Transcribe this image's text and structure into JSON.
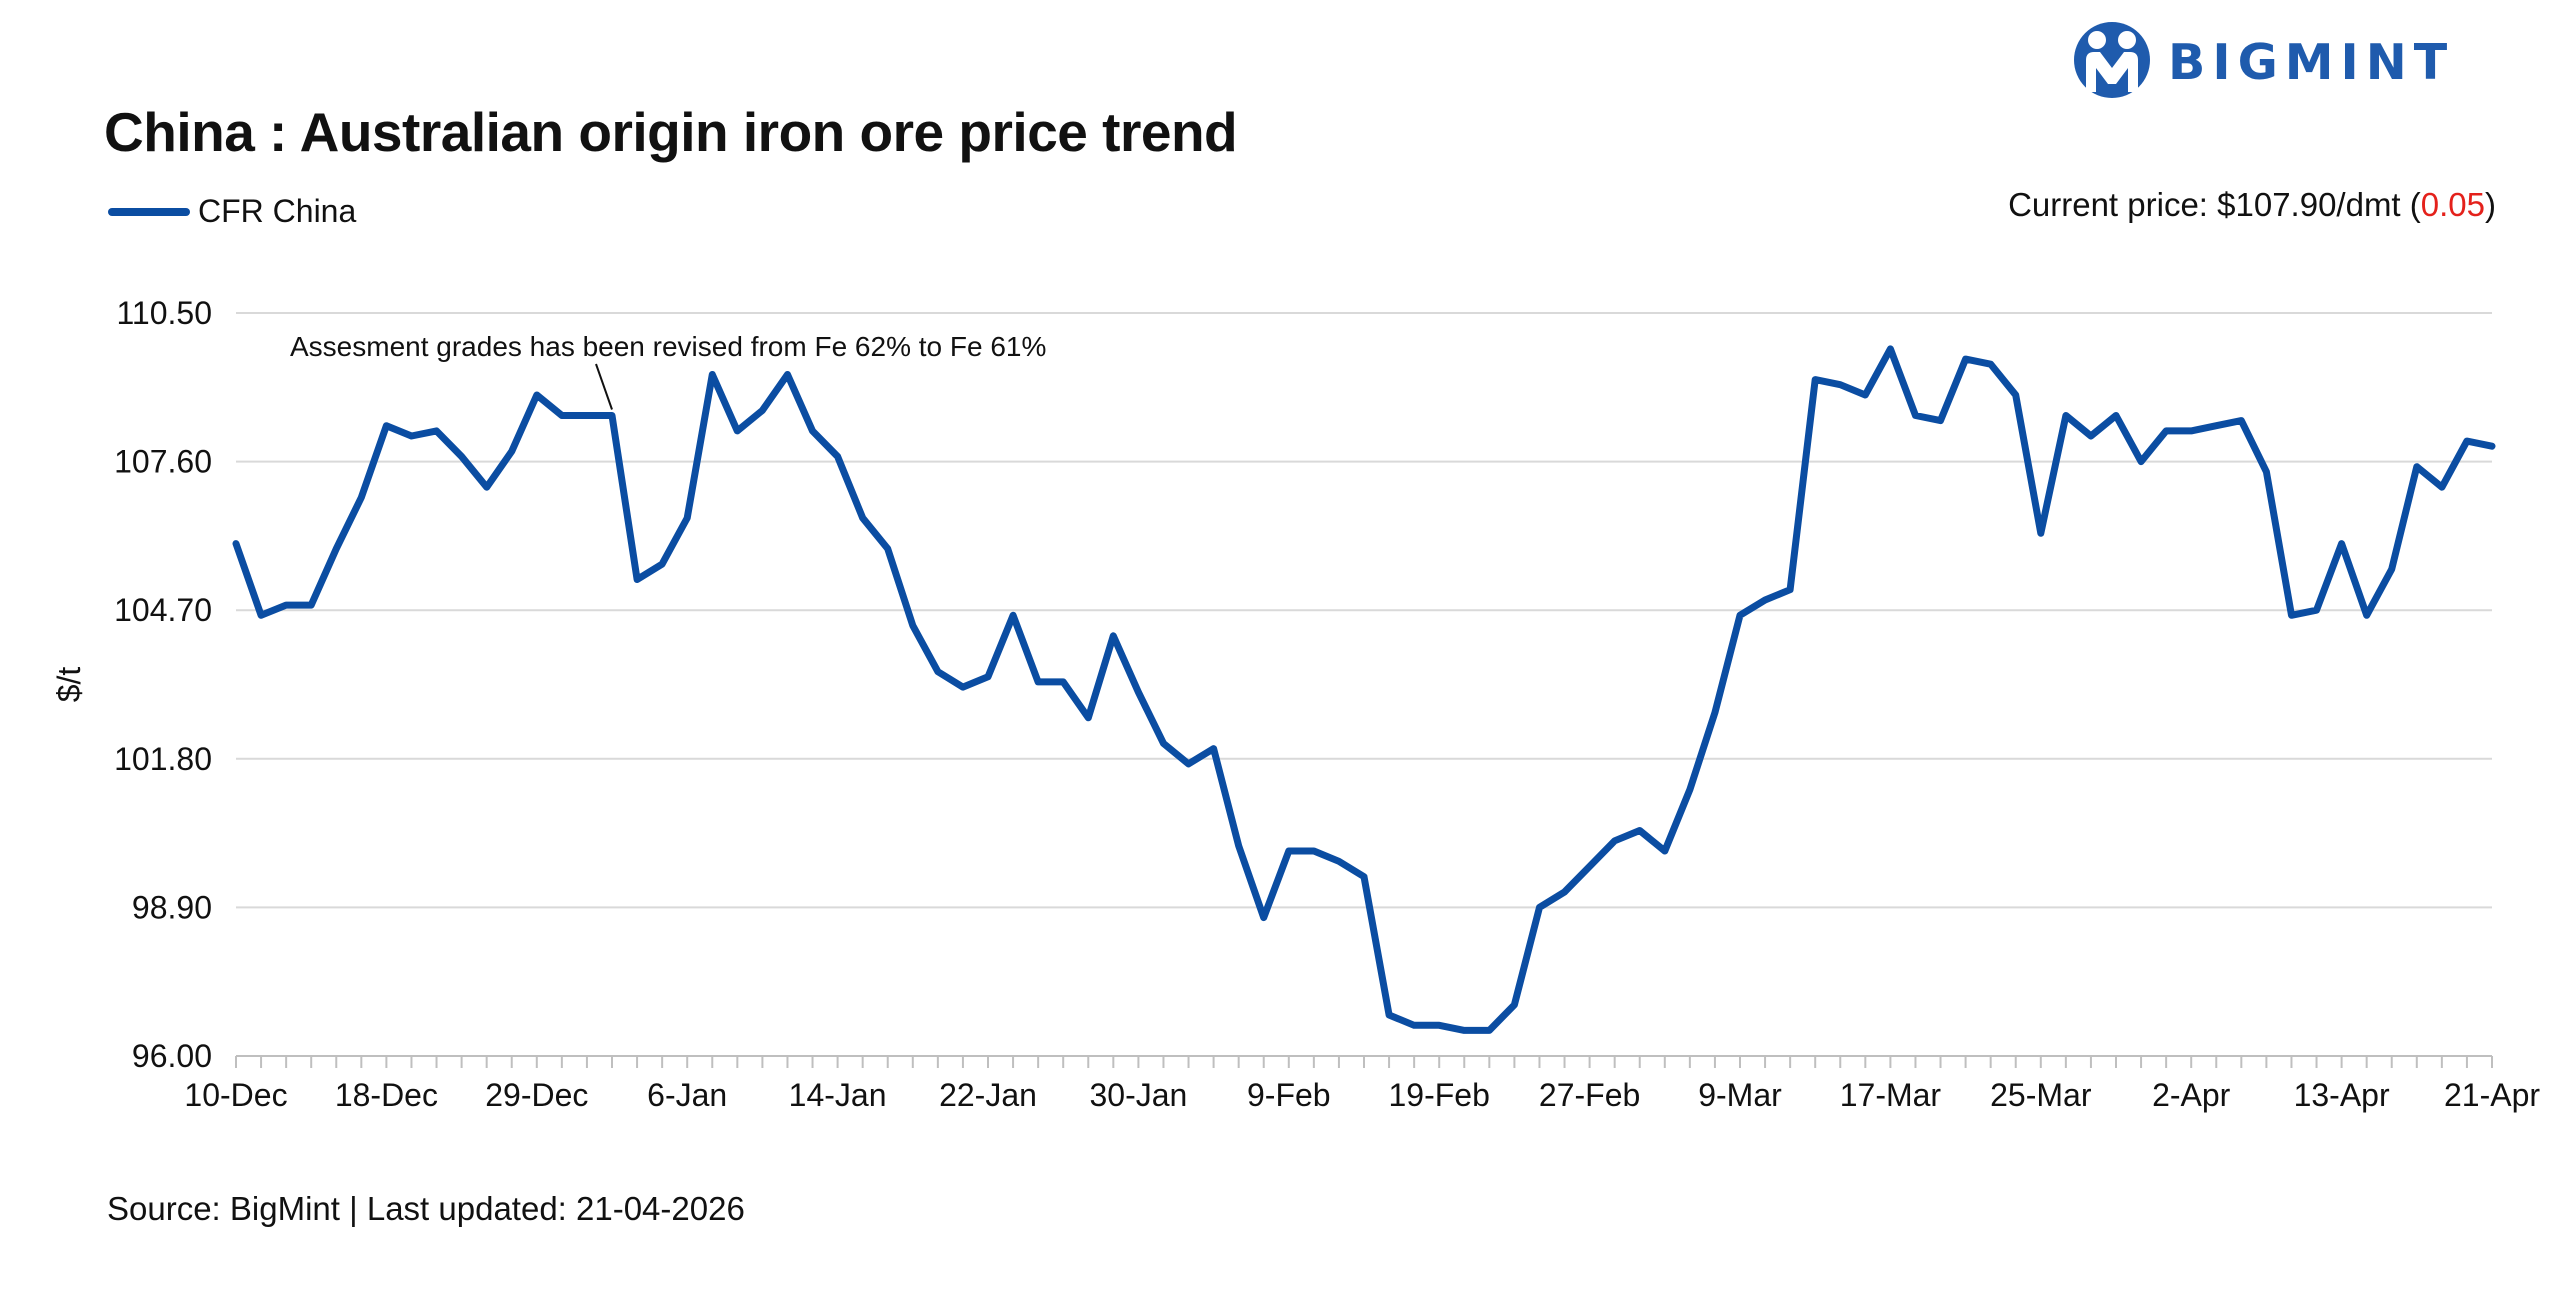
{
  "header": {
    "title": "China : Australian origin iron ore price trend",
    "logo_text": "BIGMINT"
  },
  "legend": {
    "series_label": "CFR China"
  },
  "current_price": {
    "prefix": "Current price: $107.90/dmt (",
    "change": "0.05",
    "suffix": ")",
    "change_color": "#e4211b"
  },
  "footer": {
    "source": "Source: BigMint | Last updated: 21-04-2026"
  },
  "colors": {
    "series": "#0b4da2",
    "logo": "#1f5bad",
    "grid": "#d9d9d9"
  },
  "icons": {
    "logo": "bigmint-people-icon"
  },
  "chart_data": {
    "type": "line",
    "ylabel": "$/t",
    "xlabel": "",
    "ylim": [
      96.0,
      110.5
    ],
    "yticks": [
      "96.00",
      "98.90",
      "101.80",
      "104.70",
      "107.60",
      "110.50"
    ],
    "xtick_labels": [
      "10-Dec",
      "18-Dec",
      "29-Dec",
      "6-Jan",
      "14-Jan",
      "22-Jan",
      "30-Jan",
      "9-Feb",
      "19-Feb",
      "27-Feb",
      "9-Mar",
      "17-Mar",
      "25-Mar",
      "2-Apr",
      "13-Apr",
      "21-Apr"
    ],
    "xtick_positions": [
      0,
      6,
      12,
      18,
      24,
      30,
      36,
      42,
      48,
      54,
      60,
      66,
      72,
      78,
      84,
      90
    ],
    "grid": true,
    "legend_position": "top-left",
    "annotation": {
      "text": "Assesment grades has been revised from Fe 62% to Fe 61%",
      "index": 15,
      "value": 108.5
    },
    "series": [
      {
        "name": "CFR China",
        "values": [
          106.0,
          104.6,
          104.8,
          104.8,
          105.9,
          106.9,
          108.3,
          108.1,
          108.2,
          107.7,
          107.1,
          107.8,
          108.9,
          108.5,
          108.5,
          108.5,
          105.3,
          105.6,
          106.5,
          109.3,
          108.2,
          108.6,
          109.3,
          108.2,
          107.7,
          106.5,
          105.9,
          104.4,
          103.5,
          103.2,
          103.4,
          104.6,
          103.3,
          103.3,
          102.6,
          104.2,
          103.1,
          102.1,
          101.7,
          102.0,
          100.1,
          98.7,
          100.0,
          100.0,
          99.8,
          99.5,
          96.8,
          96.6,
          96.6,
          96.5,
          96.5,
          97.0,
          98.9,
          99.2,
          99.7,
          100.2,
          100.4,
          100.0,
          101.2,
          102.7,
          104.6,
          104.9,
          105.1,
          109.2,
          109.1,
          108.9,
          109.8,
          108.5,
          108.4,
          109.6,
          109.5,
          108.9,
          106.2,
          108.5,
          108.1,
          108.5,
          107.6,
          108.2,
          108.2,
          108.3,
          108.4,
          107.4,
          104.6,
          104.7,
          106.0,
          104.6,
          105.5,
          107.5,
          107.1,
          108.0,
          107.9
        ]
      }
    ]
  }
}
